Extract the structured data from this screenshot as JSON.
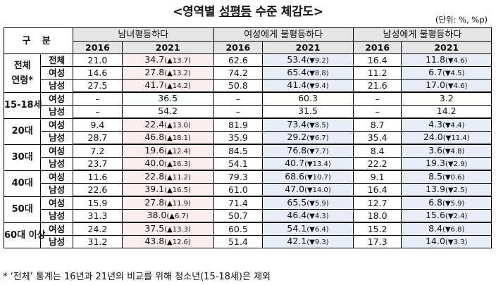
{
  "title_prefix": "<영역별 ",
  "title_underlined": "성평등",
  "title_suffix": " 수준 체감도>",
  "unit": "(단위: %, %p)",
  "header": {
    "corner": "구 분",
    "groups": [
      "남녀평등하다",
      "여성에게 불평등하다",
      "남성에게 불평등하다"
    ],
    "years": [
      "2016",
      "2021",
      "2016",
      "2021",
      "2016",
      "2021"
    ]
  },
  "rows": [
    {
      "group": "전체",
      "sub": "전체",
      "v": [
        "21.0",
        "34.7",
        "(▲13.7)",
        "62.6",
        "53.4",
        "(▼9.2)",
        "16.4",
        "11.8",
        "(▼4.6)"
      ]
    },
    {
      "group": "연령*",
      "sub": "여성",
      "v": [
        "14.6",
        "27.8",
        "(▲13.2)",
        "74.2",
        "65.4",
        "(▼8.8)",
        "11.2",
        "6.7",
        "(▼4.5)"
      ]
    },
    {
      "group": "",
      "sub": "남성",
      "v": [
        "27.5",
        "41.7",
        "(▲14.2)",
        "50.8",
        "41.4",
        "(▼9.4)",
        "21.6",
        "17.0",
        "(▼4.6)"
      ]
    },
    {
      "group": "15-18세",
      "sub": "여성",
      "v": [
        "–",
        "36.5",
        "",
        "–",
        "60.3",
        "",
        "–",
        "3.2",
        ""
      ]
    },
    {
      "group": "",
      "sub": "남성",
      "v": [
        "–",
        "54.2",
        "",
        "–",
        "31.5",
        "",
        "–",
        "14.2",
        ""
      ]
    },
    {
      "group": "20대",
      "sub": "여성",
      "v": [
        "9.4",
        "22.4",
        "(▲13.0)",
        "81.9",
        "73.4",
        "(▼8.5)",
        "8.7",
        "4.3",
        "(▼4.4)"
      ]
    },
    {
      "group": "",
      "sub": "남성",
      "v": [
        "28.7",
        "46.8",
        "(▲18.1)",
        "35.9",
        "29.2",
        "(▼6.7)",
        "35.4",
        "24.0",
        "(▼11.4)"
      ]
    },
    {
      "group": "30대",
      "sub": "여성",
      "v": [
        "7.2",
        "19.6",
        "(▲12.4)",
        "84.5",
        "76.8",
        "(▼7.7)",
        "8.4",
        "3.6",
        "(▼4.8)"
      ]
    },
    {
      "group": "",
      "sub": "남성",
      "v": [
        "23.7",
        "40.0",
        "(▲16.3)",
        "54.1",
        "40.7",
        "(▼13.4)",
        "22.2",
        "19.3",
        "(▼2.9)"
      ]
    },
    {
      "group": "40대",
      "sub": "여성",
      "v": [
        "11.6",
        "22.8",
        "(▲11.2)",
        "79.3",
        "68.6",
        "(▼10.7)",
        "9.1",
        "8.5",
        "(▼0.6)"
      ]
    },
    {
      "group": "",
      "sub": "남성",
      "v": [
        "22.6",
        "39.1",
        "(▲16.5)",
        "61.0",
        "47.0",
        "(▼14.0)",
        "16.4",
        "13.9",
        "(▼2.5)"
      ]
    },
    {
      "group": "50대",
      "sub": "여성",
      "v": [
        "15.9",
        "27.8",
        "(▲11.9)",
        "71.4",
        "65.5",
        "(▼5.9)",
        "12.7",
        "6.8",
        "(▼5.9)"
      ]
    },
    {
      "group": "",
      "sub": "남성",
      "v": [
        "31.3",
        "38.0",
        "(▲6.7)",
        "50.7",
        "46.4",
        "(▼4.3)",
        "18.0",
        "15.6",
        "(▼2.4)"
      ]
    },
    {
      "group": "60대 이상",
      "sub": "여성",
      "v": [
        "24.2",
        "37.5",
        "(▲13.3)",
        "60.5",
        "54.1",
        "(▼6.4)",
        "15.2",
        "8.4",
        "(▼6.8)"
      ]
    },
    {
      "group": "",
      "sub": "남성",
      "v": [
        "31.2",
        "43.8",
        "(▲12.6)",
        "51.4",
        "42.1",
        "(▼9.3)",
        "17.3",
        "14.0",
        "(▼3.3)"
      ]
    }
  ],
  "footnote": "* ‘전체’ 통계는 16년과 21년의 비교를 위해 청소년(15-18세)은 제외"
}
